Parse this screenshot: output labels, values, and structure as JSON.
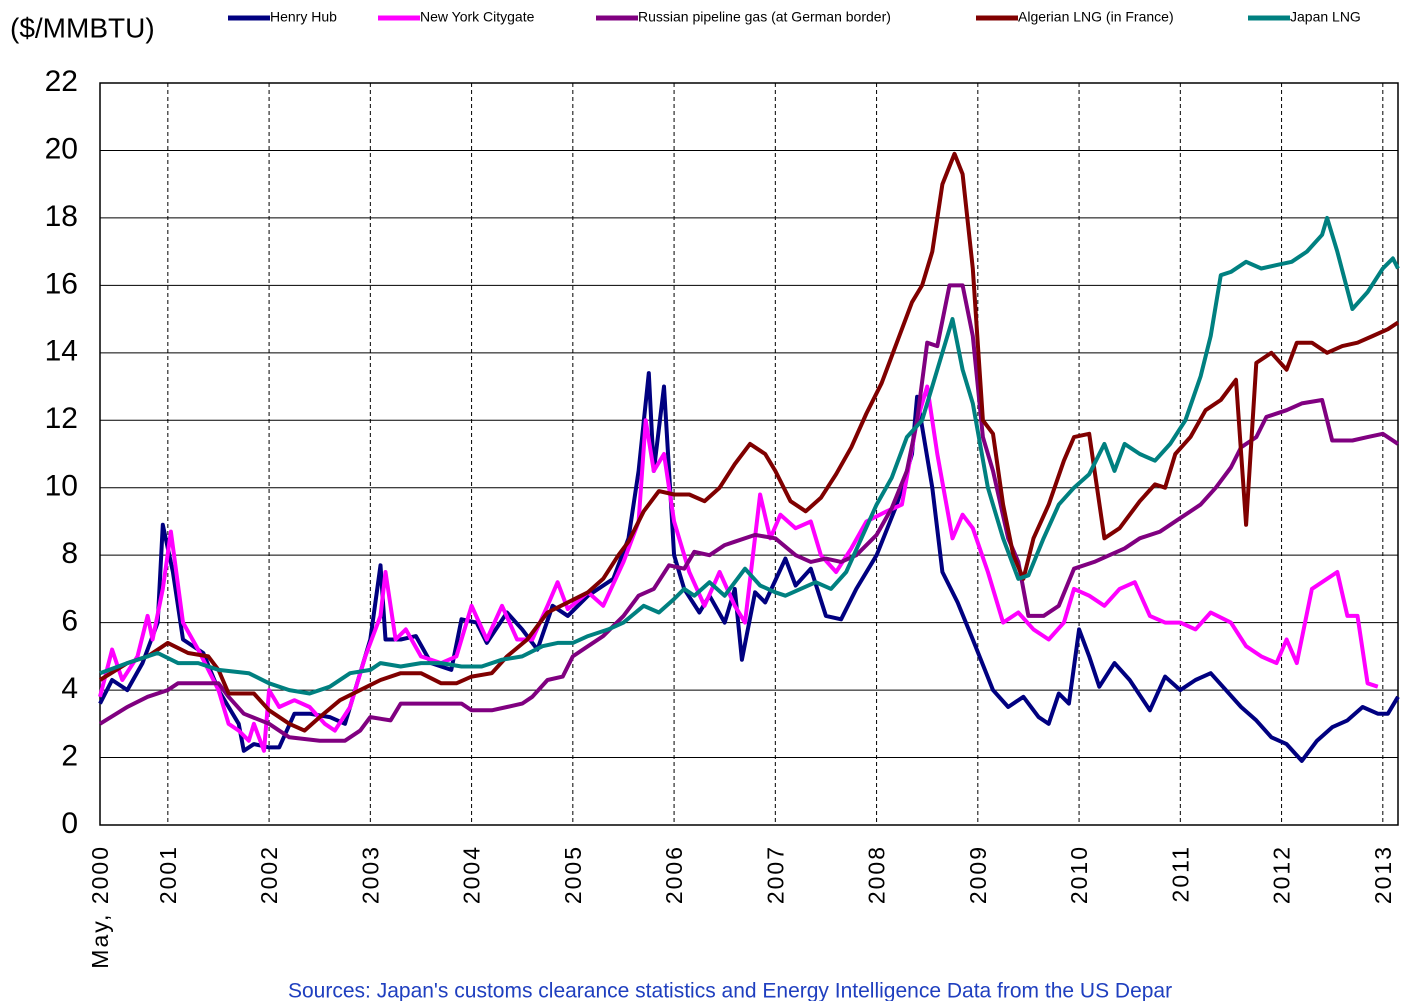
{
  "chart_data": {
    "type": "line",
    "y_label": "($/MMBTU)",
    "source": "Sources:  Japan's customs clearance statistics and Energy Intelligence Data from the US Depar",
    "xlim": [
      2000.33,
      2013.15
    ],
    "xticks": [
      {
        "value": 2000.33,
        "label": "May, 2000"
      },
      2001,
      2002,
      2003,
      2004,
      2005,
      2006,
      2007,
      2008,
      2009,
      2010,
      2011,
      2012,
      2013
    ],
    "ylim": [
      0,
      22
    ],
    "yticks": [
      0,
      2,
      4,
      6,
      8,
      10,
      12,
      14,
      16,
      18,
      20,
      22
    ],
    "grid": true,
    "legend": "top",
    "series": [
      {
        "name": "Henry Hub",
        "color": "#000080",
        "x": [
          2000.33,
          2000.45,
          2000.6,
          2000.75,
          2000.9,
          2000.95,
          2001.05,
          2001.15,
          2001.35,
          2001.5,
          2001.7,
          2001.75,
          2001.85,
          2002.0,
          2002.1,
          2002.25,
          2002.4,
          2002.6,
          2002.75,
          2002.85,
          2003.0,
          2003.1,
          2003.15,
          2003.3,
          2003.45,
          2003.6,
          2003.8,
          2003.9,
          2004.05,
          2004.15,
          2004.35,
          2004.5,
          2004.65,
          2004.8,
          2004.95,
          2005.15,
          2005.4,
          2005.55,
          2005.65,
          2005.75,
          2005.8,
          2005.9,
          2006.0,
          2006.1,
          2006.25,
          2006.35,
          2006.5,
          2006.6,
          2006.67,
          2006.8,
          2006.9,
          2007.1,
          2007.2,
          2007.35,
          2007.5,
          2007.65,
          2007.8,
          2008.0,
          2008.2,
          2008.35,
          2008.4,
          2008.55,
          2008.65,
          2008.8,
          2008.95,
          2009.15,
          2009.3,
          2009.45,
          2009.6,
          2009.7,
          2009.8,
          2009.9,
          2010.0,
          2010.1,
          2010.2,
          2010.35,
          2010.5,
          2010.7,
          2010.85,
          2011.0,
          2011.15,
          2011.3,
          2011.45,
          2011.6,
          2011.75,
          2011.9,
          2012.05,
          2012.2,
          2012.35,
          2012.5,
          2012.65,
          2012.8,
          2012.95,
          2013.05,
          2013.15
        ],
        "values": [
          3.6,
          4.3,
          4.0,
          4.8,
          6.0,
          8.9,
          7.5,
          5.5,
          5.1,
          4.0,
          3.0,
          2.2,
          2.4,
          2.3,
          2.3,
          3.3,
          3.3,
          3.2,
          3.0,
          4.0,
          5.5,
          7.7,
          5.5,
          5.5,
          5.6,
          4.8,
          4.6,
          6.1,
          6.0,
          5.4,
          6.3,
          5.8,
          5.2,
          6.5,
          6.2,
          6.8,
          7.3,
          8.5,
          10.5,
          13.4,
          10.5,
          13.0,
          8.0,
          7.0,
          6.3,
          6.8,
          6.0,
          7.0,
          4.9,
          6.9,
          6.6,
          7.9,
          7.1,
          7.6,
          6.2,
          6.1,
          7.0,
          8.0,
          9.5,
          11.0,
          12.7,
          10.0,
          7.5,
          6.6,
          5.5,
          4.0,
          3.5,
          3.8,
          3.2,
          3.0,
          3.9,
          3.6,
          5.8,
          5.0,
          4.1,
          4.8,
          4.3,
          3.4,
          4.4,
          4.0,
          4.3,
          4.5,
          4.0,
          3.5,
          3.1,
          2.6,
          2.4,
          1.9,
          2.5,
          2.9,
          3.1,
          3.5,
          3.3,
          3.3,
          3.8
        ]
      },
      {
        "name": "New York Citygate",
        "color": "#ff00ff",
        "x": [
          2000.33,
          2000.45,
          2000.55,
          2000.7,
          2000.8,
          2000.85,
          2000.95,
          2001.03,
          2001.15,
          2001.3,
          2001.5,
          2001.6,
          2001.7,
          2001.8,
          2001.85,
          2001.95,
          2002.0,
          2002.1,
          2002.25,
          2002.4,
          2002.55,
          2002.65,
          2002.8,
          2002.95,
          2003.1,
          2003.15,
          2003.25,
          2003.35,
          2003.5,
          2003.7,
          2003.85,
          2004.0,
          2004.15,
          2004.3,
          2004.45,
          2004.6,
          2004.75,
          2004.85,
          2004.95,
          2005.15,
          2005.3,
          2005.5,
          2005.65,
          2005.72,
          2005.8,
          2005.9,
          2006.0,
          2006.15,
          2006.3,
          2006.45,
          2006.6,
          2006.7,
          2006.85,
          2006.95,
          2007.05,
          2007.2,
          2007.35,
          2007.45,
          2007.6,
          2007.75,
          2007.9,
          2008.1,
          2008.25,
          2008.4,
          2008.5,
          2008.6,
          2008.75,
          2008.85,
          2008.95,
          2009.1,
          2009.25,
          2009.4,
          2009.55,
          2009.7,
          2009.85,
          2009.95,
          2010.1,
          2010.25,
          2010.4,
          2010.55,
          2010.7,
          2010.85,
          2011.0,
          2011.15,
          2011.3,
          2011.5,
          2011.65,
          2011.8,
          2011.95,
          2012.05,
          2012.15,
          2012.3,
          2012.45,
          2012.55,
          2012.65,
          2012.75,
          2012.85,
          2012.95
        ],
        "values": [
          3.8,
          5.2,
          4.3,
          5.0,
          6.2,
          5.5,
          7.0,
          8.7,
          6.0,
          5.2,
          4.0,
          3.0,
          2.8,
          2.5,
          3.0,
          2.2,
          4.0,
          3.5,
          3.7,
          3.5,
          3.0,
          2.8,
          3.5,
          5.0,
          6.2,
          7.5,
          5.5,
          5.8,
          5.0,
          4.8,
          5.0,
          6.5,
          5.5,
          6.5,
          5.5,
          5.5,
          6.5,
          7.2,
          6.4,
          6.9,
          6.5,
          7.8,
          9.0,
          12.0,
          10.5,
          11.0,
          9.0,
          7.5,
          6.5,
          7.5,
          6.5,
          6.0,
          9.8,
          8.5,
          9.2,
          8.8,
          9.0,
          8.0,
          7.5,
          8.2,
          9.0,
          9.3,
          9.5,
          12.0,
          13.0,
          11.0,
          8.5,
          9.2,
          8.8,
          7.5,
          6.0,
          6.3,
          5.8,
          5.5,
          6.0,
          7.0,
          6.8,
          6.5,
          7.0,
          7.2,
          6.2,
          6.0,
          6.0,
          5.8,
          6.3,
          6.0,
          5.3,
          5.0,
          4.8,
          5.5,
          4.8,
          7.0,
          7.3,
          7.5,
          6.2,
          6.2,
          4.2,
          4.1
        ]
      },
      {
        "name": "Russian pipeline gas (at German border)",
        "color": "#800080",
        "x": [
          2000.33,
          2000.6,
          2000.8,
          2001.0,
          2001.1,
          2001.5,
          2001.6,
          2001.75,
          2002.0,
          2002.2,
          2002.5,
          2002.75,
          2002.9,
          2003.0,
          2003.2,
          2003.3,
          2003.6,
          2003.9,
          2004.0,
          2004.2,
          2004.35,
          2004.5,
          2004.6,
          2004.75,
          2004.9,
          2005.0,
          2005.15,
          2005.3,
          2005.5,
          2005.65,
          2005.8,
          2005.95,
          2006.1,
          2006.2,
          2006.35,
          2006.5,
          2006.6,
          2006.8,
          2007.0,
          2007.2,
          2007.35,
          2007.5,
          2007.65,
          2007.8,
          2008.0,
          2008.15,
          2008.3,
          2008.4,
          2008.5,
          2008.6,
          2008.72,
          2008.85,
          2008.95,
          2009.05,
          2009.15,
          2009.3,
          2009.4,
          2009.5,
          2009.65,
          2009.8,
          2009.95,
          2010.15,
          2010.3,
          2010.45,
          2010.6,
          2010.8,
          2011.0,
          2011.2,
          2011.35,
          2011.5,
          2011.6,
          2011.75,
          2011.85,
          2012.05,
          2012.2,
          2012.4,
          2012.5,
          2012.7,
          2012.85,
          2013.0,
          2013.15
        ],
        "values": [
          3.0,
          3.5,
          3.8,
          4.0,
          4.2,
          4.2,
          3.8,
          3.3,
          3.0,
          2.6,
          2.5,
          2.5,
          2.8,
          3.2,
          3.1,
          3.6,
          3.6,
          3.6,
          3.4,
          3.4,
          3.5,
          3.6,
          3.8,
          4.3,
          4.4,
          5.0,
          5.3,
          5.6,
          6.2,
          6.8,
          7.0,
          7.7,
          7.6,
          8.1,
          8.0,
          8.3,
          8.4,
          8.6,
          8.5,
          8.0,
          7.8,
          7.9,
          7.8,
          8.0,
          8.6,
          9.4,
          10.5,
          12.0,
          14.3,
          14.2,
          16.0,
          16.0,
          14.5,
          11.5,
          10.5,
          8.5,
          7.8,
          6.2,
          6.2,
          6.5,
          7.6,
          7.8,
          8.0,
          8.2,
          8.5,
          8.7,
          9.1,
          9.5,
          10.0,
          10.6,
          11.2,
          11.5,
          12.1,
          12.3,
          12.5,
          12.6,
          11.4,
          11.4,
          11.5,
          11.6,
          11.3
        ]
      },
      {
        "name": "Algerian LNG (in France)",
        "color": "#800000",
        "x": [
          2000.33,
          2000.6,
          2000.8,
          2001.0,
          2001.2,
          2001.4,
          2001.5,
          2001.6,
          2001.85,
          2002.0,
          2002.2,
          2002.35,
          2002.5,
          2002.7,
          2002.9,
          2003.1,
          2003.3,
          2003.5,
          2003.7,
          2003.85,
          2004.0,
          2004.2,
          2004.35,
          2004.55,
          2004.75,
          2004.95,
          2005.15,
          2005.3,
          2005.45,
          2005.55,
          2005.7,
          2005.85,
          2006.0,
          2006.15,
          2006.3,
          2006.45,
          2006.6,
          2006.75,
          2006.9,
          2007.0,
          2007.15,
          2007.3,
          2007.45,
          2007.6,
          2007.75,
          2007.9,
          2008.05,
          2008.2,
          2008.35,
          2008.45,
          2008.55,
          2008.65,
          2008.77,
          2008.85,
          2008.95,
          2009.05,
          2009.15,
          2009.25,
          2009.35,
          2009.45,
          2009.55,
          2009.7,
          2009.85,
          2009.95,
          2010.1,
          2010.25,
          2010.4,
          2010.5,
          2010.6,
          2010.75,
          2010.85,
          2010.95,
          2011.1,
          2011.25,
          2011.4,
          2011.55,
          2011.65,
          2011.75,
          2011.9,
          2012.05,
          2012.15,
          2012.3,
          2012.45,
          2012.6,
          2012.75,
          2012.9,
          2013.05,
          2013.15
        ],
        "values": [
          4.3,
          4.8,
          5.0,
          5.4,
          5.1,
          5.0,
          4.6,
          3.9,
          3.9,
          3.4,
          3.0,
          2.8,
          3.2,
          3.7,
          4.0,
          4.3,
          4.5,
          4.5,
          4.2,
          4.2,
          4.4,
          4.5,
          5.0,
          5.5,
          6.3,
          6.6,
          6.9,
          7.3,
          8.0,
          8.4,
          9.3,
          9.9,
          9.8,
          9.8,
          9.6,
          10.0,
          10.7,
          11.3,
          11.0,
          10.5,
          9.6,
          9.3,
          9.7,
          10.4,
          11.2,
          12.2,
          13.1,
          14.3,
          15.5,
          16.0,
          17.0,
          19.0,
          19.9,
          19.3,
          16.5,
          12.0,
          11.6,
          9.5,
          8.0,
          7.3,
          8.5,
          9.5,
          10.8,
          11.5,
          11.6,
          8.5,
          8.8,
          9.2,
          9.6,
          10.1,
          10.0,
          11.0,
          11.5,
          12.3,
          12.6,
          13.2,
          8.9,
          13.7,
          14.0,
          13.5,
          14.3,
          14.3,
          14.0,
          14.2,
          14.3,
          14.5,
          14.7,
          14.9
        ]
      },
      {
        "name": "Japan LNG",
        "color": "#008080",
        "x": [
          2000.33,
          2000.6,
          2000.8,
          2000.9,
          2001.1,
          2001.3,
          2001.5,
          2001.8,
          2002.0,
          2002.2,
          2002.4,
          2002.6,
          2002.8,
          2003.0,
          2003.1,
          2003.3,
          2003.5,
          2003.7,
          2003.9,
          2004.1,
          2004.3,
          2004.5,
          2004.7,
          2004.85,
          2005.0,
          2005.15,
          2005.35,
          2005.5,
          2005.7,
          2005.85,
          2006.0,
          2006.1,
          2006.2,
          2006.35,
          2006.5,
          2006.7,
          2006.85,
          2007.0,
          2007.1,
          2007.25,
          2007.4,
          2007.55,
          2007.7,
          2007.85,
          2008.0,
          2008.15,
          2008.3,
          2008.45,
          2008.6,
          2008.75,
          2008.85,
          2008.95,
          2009.1,
          2009.25,
          2009.4,
          2009.5,
          2009.65,
          2009.8,
          2009.95,
          2010.1,
          2010.25,
          2010.35,
          2010.45,
          2010.6,
          2010.75,
          2010.9,
          2011.05,
          2011.2,
          2011.3,
          2011.4,
          2011.5,
          2011.65,
          2011.8,
          2011.95,
          2012.1,
          2012.25,
          2012.4,
          2012.45,
          2012.55,
          2012.7,
          2012.85,
          2013.0,
          2013.1,
          2013.15
        ],
        "values": [
          4.5,
          4.8,
          5.0,
          5.1,
          4.8,
          4.8,
          4.6,
          4.5,
          4.2,
          4.0,
          3.9,
          4.1,
          4.5,
          4.6,
          4.8,
          4.7,
          4.8,
          4.8,
          4.7,
          4.7,
          4.9,
          5.0,
          5.3,
          5.4,
          5.4,
          5.6,
          5.8,
          6.0,
          6.5,
          6.3,
          6.7,
          7.0,
          6.8,
          7.2,
          6.8,
          7.6,
          7.1,
          6.9,
          6.8,
          7.0,
          7.2,
          7.0,
          7.5,
          8.5,
          9.5,
          10.3,
          11.5,
          12.0,
          13.5,
          15.0,
          13.5,
          12.5,
          10.0,
          8.5,
          7.3,
          7.4,
          8.5,
          9.5,
          10.0,
          10.4,
          11.3,
          10.5,
          11.3,
          11.0,
          10.8,
          11.3,
          12.0,
          13.3,
          14.5,
          16.3,
          16.4,
          16.7,
          16.5,
          16.6,
          16.7,
          17.0,
          17.5,
          18.0,
          17.0,
          15.3,
          15.8,
          16.5,
          16.8,
          16.5
        ]
      }
    ]
  }
}
